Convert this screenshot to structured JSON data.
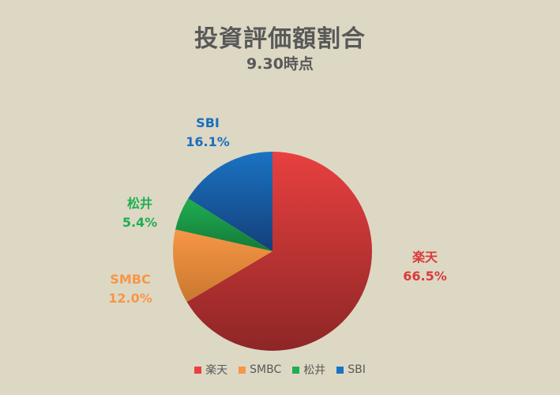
{
  "chart_data": {
    "type": "pie",
    "title": "投資評価額割合",
    "subtitle": "9.30時点",
    "slices": [
      {
        "label": "楽天",
        "value": 66.5,
        "value_label": "66.5%",
        "color": "#e84040",
        "color_dark": "#8e2626",
        "text_color": "#d93a3a"
      },
      {
        "label": "SMBC",
        "value": 12.0,
        "value_label": "12.0%",
        "color": "#f79646",
        "color_dark": "#c9782f",
        "text_color": "#f79646"
      },
      {
        "label": "松井",
        "value": 5.4,
        "value_label": "5.4%",
        "color": "#1fae52",
        "color_dark": "#157a38",
        "text_color": "#1fae52"
      },
      {
        "label": "SBI",
        "value": 16.1,
        "value_label": "16.1%",
        "color": "#1a73c2",
        "color_dark": "#143f7a",
        "text_color": "#1a6fbd"
      }
    ],
    "legend_position": "bottom"
  }
}
